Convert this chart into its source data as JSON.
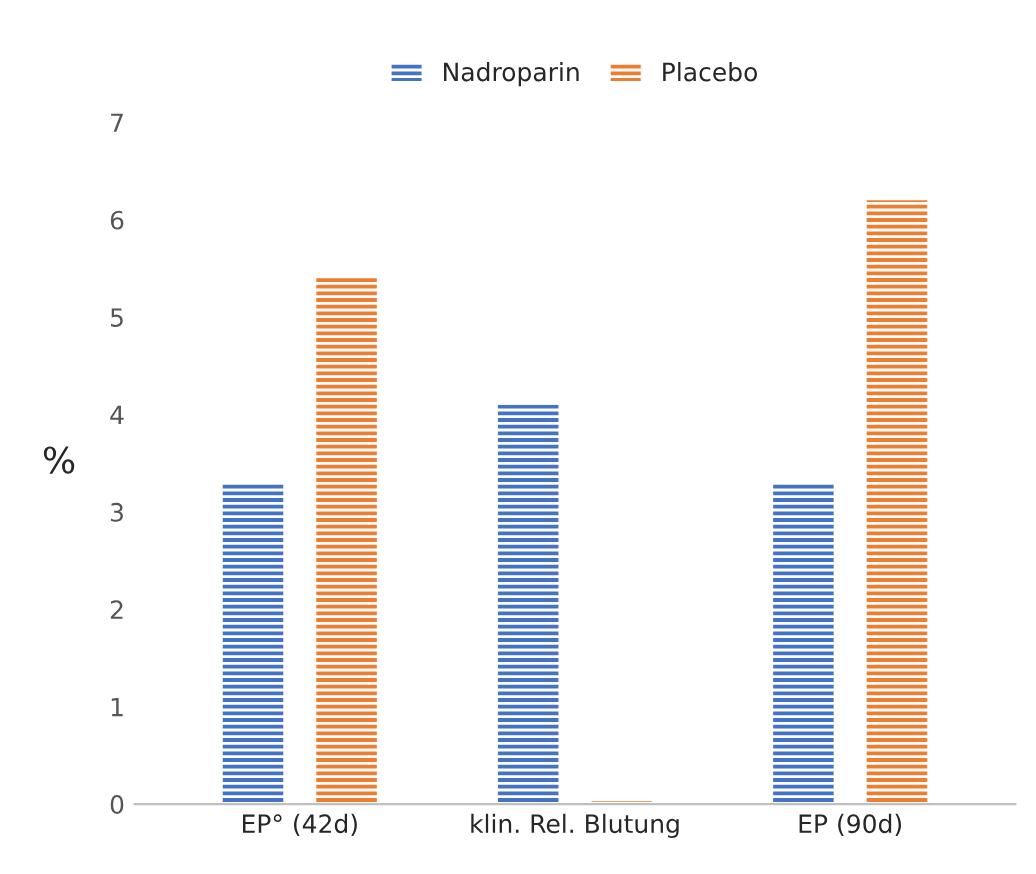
{
  "chart_data": {
    "type": "bar",
    "categories": [
      "EP° (42d)",
      "klin. Rel. Blutung",
      "EP (90d)"
    ],
    "series": [
      {
        "name": "Nadroparin",
        "color": "#4472c4",
        "values": [
          3.3,
          4.1,
          3.3
        ]
      },
      {
        "name": "Placebo",
        "color": "#ed7d31",
        "values": [
          5.4,
          0.03,
          6.2
        ]
      }
    ],
    "ylabel": "%",
    "ylim": [
      0,
      7
    ],
    "yticks": [
      0,
      1,
      2,
      3,
      4,
      5,
      6,
      7
    ],
    "grid": false,
    "legend": "top"
  }
}
